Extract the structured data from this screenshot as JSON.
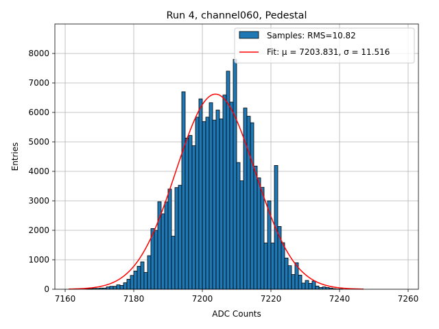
{
  "chart_data": {
    "type": "bar",
    "title": "Run 4, channel060, Pedestal",
    "xlabel": "ADC Counts",
    "ylabel": "Entries",
    "xlim": [
      7157,
      7263
    ],
    "ylim": [
      0,
      9000
    ],
    "xticks": [
      7160,
      7180,
      7200,
      7220,
      7240,
      7260
    ],
    "yticks": [
      0,
      1000,
      2000,
      3000,
      4000,
      5000,
      6000,
      7000,
      8000
    ],
    "grid": true,
    "legend_position": "top-right",
    "histogram": {
      "name": "Samples: RMS=10.82",
      "color": "#1f77b4",
      "bin_width": 1,
      "bins": [
        [
          7166,
          20
        ],
        [
          7167,
          20
        ],
        [
          7168,
          30
        ],
        [
          7169,
          30
        ],
        [
          7170,
          40
        ],
        [
          7171,
          40
        ],
        [
          7172,
          80
        ],
        [
          7173,
          100
        ],
        [
          7174,
          100
        ],
        [
          7175,
          150
        ],
        [
          7176,
          130
        ],
        [
          7177,
          220
        ],
        [
          7178,
          340
        ],
        [
          7179,
          470
        ],
        [
          7180,
          620
        ],
        [
          7181,
          780
        ],
        [
          7182,
          930
        ],
        [
          7183,
          570
        ],
        [
          7184,
          1140
        ],
        [
          7185,
          2060
        ],
        [
          7186,
          2000
        ],
        [
          7187,
          2970
        ],
        [
          7188,
          2560
        ],
        [
          7189,
          2960
        ],
        [
          7190,
          3400
        ],
        [
          7191,
          1800
        ],
        [
          7192,
          3450
        ],
        [
          7193,
          3530
        ],
        [
          7194,
          6700
        ],
        [
          7195,
          5130
        ],
        [
          7196,
          5220
        ],
        [
          7197,
          4870
        ],
        [
          7198,
          5840
        ],
        [
          7199,
          6460
        ],
        [
          7200,
          5690
        ],
        [
          7201,
          5840
        ],
        [
          7202,
          6330
        ],
        [
          7203,
          5740
        ],
        [
          7204,
          6080
        ],
        [
          7205,
          5780
        ],
        [
          7206,
          6590
        ],
        [
          7207,
          7400
        ],
        [
          7208,
          6350
        ],
        [
          7209,
          7800
        ],
        [
          7210,
          4300
        ],
        [
          7211,
          3680
        ],
        [
          7212,
          6150
        ],
        [
          7213,
          5870
        ],
        [
          7214,
          5650
        ],
        [
          7215,
          4180
        ],
        [
          7216,
          3780
        ],
        [
          7217,
          3460
        ],
        [
          7218,
          1570
        ],
        [
          7219,
          3000
        ],
        [
          7220,
          1570
        ],
        [
          7221,
          4200
        ],
        [
          7222,
          2130
        ],
        [
          7223,
          1580
        ],
        [
          7224,
          1060
        ],
        [
          7225,
          800
        ],
        [
          7226,
          500
        ],
        [
          7227,
          900
        ],
        [
          7228,
          480
        ],
        [
          7229,
          210
        ],
        [
          7230,
          300
        ],
        [
          7231,
          200
        ],
        [
          7232,
          280
        ],
        [
          7233,
          110
        ],
        [
          7234,
          60
        ],
        [
          7235,
          80
        ],
        [
          7236,
          60
        ],
        [
          7237,
          40
        ],
        [
          7238,
          20
        ],
        [
          7239,
          10
        ],
        [
          7240,
          10
        ]
      ]
    },
    "fit": {
      "name": "Fit: μ = 7203.831, σ = 11.516",
      "mu": 7203.831,
      "sigma": 11.516,
      "amplitude": 6620,
      "range": [
        7161,
        7247
      ],
      "color": "#ff0000"
    }
  }
}
